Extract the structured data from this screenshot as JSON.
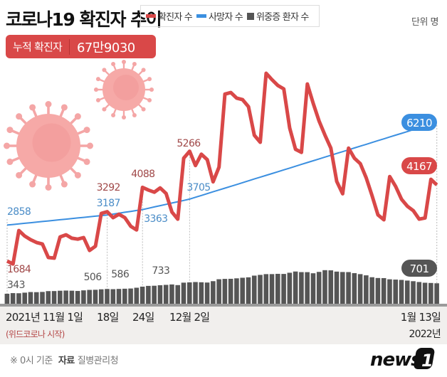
{
  "header": {
    "title": "코로나19 확진자 추이",
    "unit": "단위 명",
    "cumulative_label": "누적 확진자",
    "cumulative_value": "67만9030"
  },
  "legend": [
    {
      "label": "확진자 수",
      "color": "#d94848"
    },
    {
      "label": "사망자 수",
      "color": "#3b8fe0"
    },
    {
      "label": "위중증 환자 수",
      "color": "#555555"
    }
  ],
  "x_labels": {
    "start": "2021년 11월 1일",
    "d18": "18일",
    "d24": "24일",
    "dec2": "12월 2일",
    "end": "1월 13일",
    "start_note": "(위드코로나 시작)",
    "end_year": "2022년"
  },
  "footer": {
    "note": "※ 0시 기준",
    "source_label": "자료",
    "source": "질병관리청",
    "logo": "news1"
  },
  "chart_data": {
    "type": "line+bar",
    "x_start": "2021-11-01",
    "x_end": "2022-01-13",
    "x_step": "1 day",
    "series": [
      {
        "name": "확진자 수",
        "type": "line",
        "color": "#d94848",
        "values": [
          1684,
          1590,
          2680,
          2500,
          2380,
          2290,
          2240,
          1800,
          1780,
          2470,
          2540,
          2430,
          2400,
          2450,
          2030,
          2170,
          3240,
          3292,
          3100,
          3210,
          3100,
          2820,
          2700,
          4088,
          4000,
          3930,
          4070,
          3890,
          3280,
          3050,
          5040,
          5266,
          4800,
          5170,
          4990,
          4270,
          4750,
          7130,
          7180,
          7000,
          6950,
          6720,
          5790,
          5560,
          7810,
          7600,
          7410,
          7300,
          6020,
          5330,
          5230,
          7460,
          6830,
          6250,
          5790,
          5370,
          4280,
          3880,
          5370,
          5040,
          4860,
          4400,
          3820,
          3190,
          3030,
          4440,
          4120,
          3700,
          3470,
          3330,
          3050,
          3090,
          4350,
          4167
        ]
      },
      {
        "name": "사망자 수",
        "type": "line",
        "color": "#3b8fe0",
        "values": [
          2858,
          2877,
          2897,
          2916,
          2935,
          2955,
          2974,
          2993,
          3013,
          3032,
          3052,
          3071,
          3090,
          3110,
          3129,
          3148,
          3168,
          3187,
          3216,
          3246,
          3275,
          3304,
          3334,
          3363,
          3406,
          3449,
          3491,
          3534,
          3577,
          3620,
          3662,
          3705,
          3765,
          3824,
          3884,
          3944,
          4003,
          4063,
          4122,
          4182,
          4241,
          4301,
          4361,
          4420,
          4480,
          4539,
          4599,
          4659,
          4718,
          4778,
          4837,
          4897,
          4956,
          5016,
          5076,
          5135,
          5195,
          5254,
          5314,
          5374,
          5433,
          5493,
          5552,
          5612,
          5671,
          5731,
          5791,
          5850,
          5910,
          5969,
          6029,
          6089,
          6148,
          6210
        ]
      },
      {
        "name": "위중증 환자 수",
        "type": "bar",
        "color": "#555555",
        "values": [
          343,
          364,
          360,
          380,
          401,
          397,
          405,
          433,
          435,
          446,
          452,
          447,
          438,
          459,
          475,
          479,
          495,
          506,
          499,
          508,
          515,
          522,
          549,
          586,
          612,
          617,
          634,
          647,
          661,
          639,
          723,
          733,
          744,
          736,
          727,
          774,
          840,
          852,
          855,
          871,
          891,
          906,
          964,
          989,
          1015,
          1016,
          1025,
          1022,
          1063,
          1105,
          1084,
          1083,
          1045,
          1092,
          1151,
          1145,
          1102,
          1088,
          1085,
          1049,
          1015,
          974,
          909,
          882,
          879,
          838,
          828,
          817,
          794,
          773,
          745,
          720,
          712,
          701
        ]
      }
    ],
    "annotations": [
      {
        "series": 0,
        "day": 0,
        "label": "1684"
      },
      {
        "series": 0,
        "day": 17,
        "label": "3292"
      },
      {
        "series": 0,
        "day": 23,
        "label": "4088"
      },
      {
        "series": 0,
        "day": 31,
        "label": "5266"
      },
      {
        "series": 0,
        "day": 73,
        "label": "4167",
        "pill": true
      },
      {
        "series": 1,
        "day": 0,
        "label": "2858"
      },
      {
        "series": 1,
        "day": 17,
        "label": "3187"
      },
      {
        "series": 1,
        "day": 23,
        "label": "3363"
      },
      {
        "series": 1,
        "day": 31,
        "label": "3705"
      },
      {
        "series": 1,
        "day": 73,
        "label": "6210",
        "pill": true
      },
      {
        "series": 2,
        "day": 0,
        "label": "343"
      },
      {
        "series": 2,
        "day": 17,
        "label": "506"
      },
      {
        "series": 2,
        "day": 23,
        "label": "586"
      },
      {
        "series": 2,
        "day": 31,
        "label": "733"
      },
      {
        "series": 2,
        "day": 73,
        "label": "701",
        "pill": true
      }
    ],
    "grid": false,
    "legend_position": "top"
  }
}
